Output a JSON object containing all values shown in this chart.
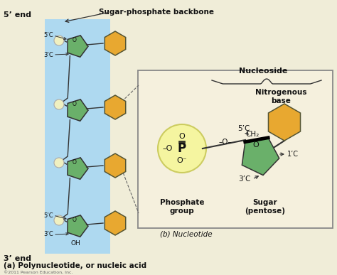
{
  "bg_color": "#f0edd8",
  "blue_bg": "#aed9f0",
  "sugar_color": "#6ab06a",
  "base_color": "#e8a830",
  "phosphate_fill": "#f5f5a0",
  "phosphate_edge": "#cccc60",
  "bond_color": "#333333",
  "title_a": "(a) Polynucleotide, or nucleic acid",
  "title_b": "(b) Nucleotide",
  "label_5end": "5’ end",
  "label_3end": "3’ end",
  "label_backbone": "Sugar-phosphate backbone",
  "label_nucleoside": "Nucleoside",
  "label_nitro": "Nitrogenous\nbase",
  "label_phosphate": "Phosphate\ngroup",
  "label_sugar": "Sugar\n(pentose)",
  "label_oh": "OH",
  "copyright": "©2011 Pearson Education, Inc.",
  "phos_circle_color": "#f0f0c0",
  "phos_circle_edge": "#aaaaaa",
  "box_bg": "#f5f0dd",
  "box_edge": "#888888"
}
